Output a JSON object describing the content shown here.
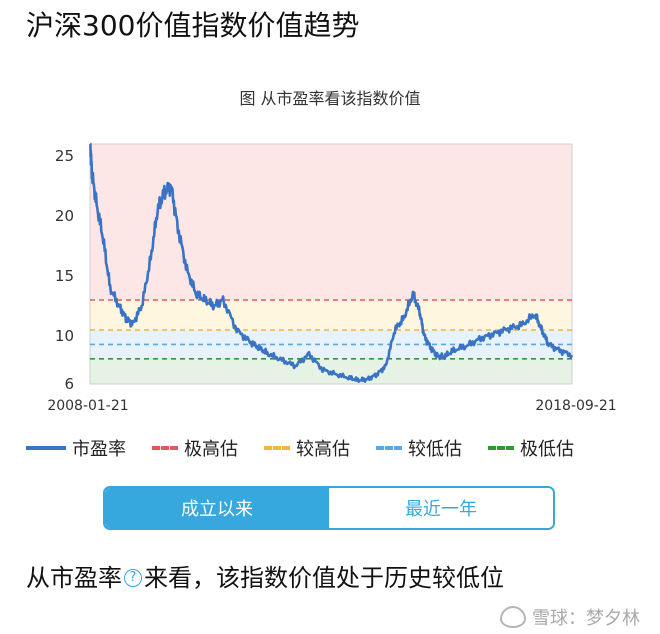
{
  "page": {
    "title": "沪深300价值指数价值趋势",
    "conclusion_prefix": "从市盈率",
    "conclusion_suffix": "来看，该指数价值处于历史较低位",
    "help_glyph": "?"
  },
  "toggle": {
    "options": [
      "成立以来",
      "最近一年"
    ],
    "selected": "成立以来",
    "active_color": "#37a8de"
  },
  "watermark": {
    "text": "雪球：梦夕林"
  },
  "chart_data": {
    "type": "line",
    "title": "图 从市盈率看该指数价值",
    "xlabel": "",
    "ylabel": "",
    "x_start": "2008-01-21",
    "x_end": "2018-09-21",
    "ylim": [
      6,
      26
    ],
    "yticks": [
      25,
      20,
      15,
      10,
      6
    ],
    "grid": false,
    "legend_position": "bottom",
    "series": [
      {
        "name": "市盈率",
        "color": "#3a72c4",
        "x": [
          2008.06,
          2008.1,
          2008.2,
          2008.35,
          2008.5,
          2008.7,
          2008.85,
          2009.0,
          2009.2,
          2009.4,
          2009.55,
          2009.7,
          2009.85,
          2010.0,
          2010.2,
          2010.4,
          2010.6,
          2010.8,
          2011.0,
          2011.3,
          2011.6,
          2011.8,
          2012.0,
          2012.3,
          2012.6,
          2012.9,
          2013.2,
          2013.5,
          2013.8,
          2014.0,
          2014.2,
          2014.4,
          2014.6,
          2014.8,
          2015.0,
          2015.2,
          2015.35,
          2015.45,
          2015.6,
          2015.75,
          2015.9,
          2016.1,
          2016.4,
          2016.7,
          2017.0,
          2017.3,
          2017.6,
          2017.9,
          2018.05,
          2018.2,
          2018.45,
          2018.72
        ],
        "values": [
          26.0,
          23.5,
          21.0,
          18.0,
          14.0,
          12.5,
          11.5,
          11.0,
          12.5,
          16.5,
          20.5,
          22.0,
          22.5,
          19.0,
          15.5,
          13.5,
          13.0,
          12.5,
          13.0,
          10.5,
          9.5,
          9.0,
          8.5,
          8.0,
          7.5,
          8.5,
          7.2,
          6.8,
          6.5,
          6.3,
          6.4,
          6.8,
          7.5,
          10.5,
          11.5,
          13.5,
          12.0,
          10.0,
          9.0,
          8.3,
          8.3,
          8.8,
          9.2,
          9.8,
          10.2,
          10.6,
          10.9,
          11.8,
          10.5,
          9.3,
          8.8,
          8.4
        ]
      }
    ],
    "reference_lines": [
      {
        "name": "极高估",
        "value": 13.0,
        "color": "#e05a5a"
      },
      {
        "name": "较高估",
        "value": 10.5,
        "color": "#f0b63c"
      },
      {
        "name": "较低估",
        "value": 9.3,
        "color": "#5aa7e6"
      },
      {
        "name": "极低估",
        "value": 8.1,
        "color": "#2f9a2f"
      }
    ],
    "zones": [
      {
        "from": 13.0,
        "to": 26.0,
        "color": "#fde6e6"
      },
      {
        "from": 10.5,
        "to": 13.0,
        "color": "#fff6df"
      },
      {
        "from": 8.1,
        "to": 10.5,
        "color": "#e8f2fb"
      },
      {
        "from": 6.0,
        "to": 8.1,
        "color": "#e6f2e4"
      }
    ]
  }
}
